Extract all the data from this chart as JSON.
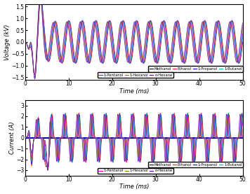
{
  "ylabel_voltage": "Voltage (kV)",
  "ylabel_current": "Current (A)",
  "xlabel": "Time (ms)",
  "xlim": [
    0,
    50
  ],
  "ylim_voltage": [
    -1.6,
    1.6
  ],
  "ylim_current": [
    -3.5,
    3.5
  ],
  "yticks_voltage": [
    -1.5,
    -1.0,
    -0.5,
    0.0,
    0.5,
    1.0,
    1.5
  ],
  "yticks_current": [
    -3,
    -2,
    -1,
    0,
    1,
    2,
    3
  ],
  "xticks": [
    0,
    10,
    20,
    30,
    40,
    50
  ],
  "legend_labels": [
    "Methanol",
    "Ethanol",
    "1-Propanol",
    "1-Butanol",
    "1-Pentanol",
    "1-Hexanol",
    "n-Hexane"
  ],
  "colors": [
    "#1a1a1a",
    "#ff2222",
    "#1111ff",
    "#00bbbb",
    "#dd00dd",
    "#888800",
    "#7700cc"
  ],
  "background": "#ffffff",
  "freq_hz": 0.32,
  "n_points": 8000
}
